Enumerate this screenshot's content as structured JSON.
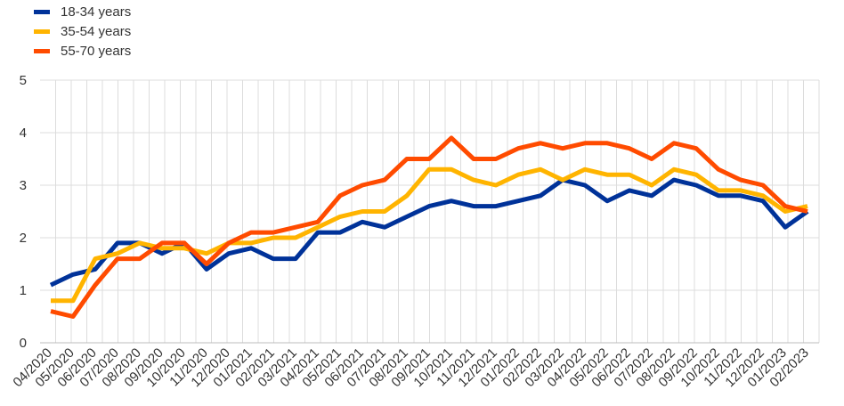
{
  "chart_data": {
    "type": "line",
    "categories": [
      "04/2020",
      "05/2020",
      "06/2020",
      "07/2020",
      "08/2020",
      "09/2020",
      "10/2020",
      "11/2020",
      "12/2020",
      "01/2021",
      "02/2021",
      "03/2021",
      "04/2021",
      "05/2021",
      "06/2021",
      "07/2021",
      "08/2021",
      "09/2021",
      "10/2021",
      "11/2021",
      "12/2021",
      "01/2022",
      "02/2022",
      "03/2022",
      "04/2022",
      "05/2022",
      "06/2022",
      "07/2022",
      "08/2022",
      "09/2022",
      "10/2022",
      "11/2022",
      "12/2022",
      "01/2023",
      "02/2023"
    ],
    "x_points": [
      {
        "label": "04/2020"
      },
      {
        "label": "05/2020"
      },
      {
        "label": "05/2020"
      },
      {
        "label": "06/2020"
      },
      {
        "label": "07/2020"
      },
      {
        "label": "07/2020"
      },
      {
        "label": "08/2020"
      },
      {
        "label": "09/2020"
      },
      {
        "label": "09/2020"
      },
      {
        "label": "10/2020"
      },
      {
        "label": "11/2020"
      },
      {
        "label": "12/2020"
      },
      {
        "label": "12/2020"
      },
      {
        "label": "01/2021"
      },
      {
        "label": "02/2021"
      },
      {
        "label": "02/2021"
      },
      {
        "label": "03/2021"
      },
      {
        "label": "04/2021"
      },
      {
        "label": "04/2021"
      },
      {
        "label": "05/2021"
      },
      {
        "label": "06/2021"
      },
      {
        "label": "06/2021"
      },
      {
        "label": "07/2021"
      },
      {
        "label": "08/2021"
      },
      {
        "label": "09/2021"
      },
      {
        "label": "09/2021"
      },
      {
        "label": "10/2021"
      },
      {
        "label": "11/2021"
      },
      {
        "label": "11/2021"
      },
      {
        "label": "12/2021"
      },
      {
        "label": "01/2022"
      },
      {
        "label": "01/2022"
      },
      {
        "label": "02/2022"
      },
      {
        "label": "03/2022"
      },
      {
        "label": "04/2022"
      },
      {
        "label": "04/2022"
      },
      {
        "label": "05/2022"
      },
      {
        "label": "06/2022"
      },
      {
        "label": "06/2022"
      },
      {
        "label": "07/2022"
      },
      {
        "label": "08/2022"
      },
      {
        "label": "08/2022"
      },
      {
        "label": "09/2022"
      },
      {
        "label": "10/2022"
      },
      {
        "label": "11/2022"
      },
      {
        "label": "11/2022"
      },
      {
        "label": "12/2022"
      },
      {
        "label": "01/2023"
      },
      {
        "label": "01/2023"
      },
      {
        "label": "02/2023"
      }
    ],
    "series": [
      {
        "name": "18-34 years",
        "color": "#003299",
        "values": [
          1.1,
          1.3,
          1.4,
          1.9,
          1.9,
          1.7,
          1.9,
          1.4,
          1.7,
          1.8,
          1.6,
          1.6,
          2.1,
          2.1,
          2.3,
          2.2,
          2.4,
          2.6,
          2.7,
          2.6,
          2.6,
          2.7,
          2.8,
          3.1,
          3.0,
          2.7,
          2.9,
          2.8,
          3.1,
          3.0,
          2.8,
          2.8,
          2.7,
          2.2,
          2.5
        ]
      },
      {
        "name": "35-54 years",
        "color": "#FFB400",
        "values": [
          0.8,
          0.8,
          1.6,
          1.7,
          1.9,
          1.8,
          1.8,
          1.7,
          1.9,
          1.9,
          2.0,
          2.0,
          2.2,
          2.4,
          2.5,
          2.5,
          2.8,
          3.3,
          3.3,
          3.1,
          3.0,
          3.2,
          3.3,
          3.1,
          3.3,
          3.2,
          3.2,
          3.0,
          3.3,
          3.2,
          2.9,
          2.9,
          2.8,
          2.5,
          2.6
        ]
      },
      {
        "name": "55-70 years",
        "color": "#FF4B00",
        "values": [
          0.6,
          0.5,
          1.1,
          1.6,
          1.6,
          1.9,
          1.9,
          1.5,
          1.9,
          2.1,
          2.1,
          2.2,
          2.3,
          2.8,
          3.0,
          3.1,
          3.5,
          3.5,
          3.9,
          3.5,
          3.5,
          3.7,
          3.8,
          3.7,
          3.8,
          3.8,
          3.7,
          3.5,
          3.8,
          3.7,
          3.3,
          3.1,
          3.0,
          2.6,
          2.5
        ]
      }
    ],
    "yticks": [
      "0",
      "1",
      "2",
      "3",
      "4",
      "5"
    ],
    "ylim": [
      0,
      5
    ],
    "grid": true,
    "legend_position": "top-left"
  }
}
